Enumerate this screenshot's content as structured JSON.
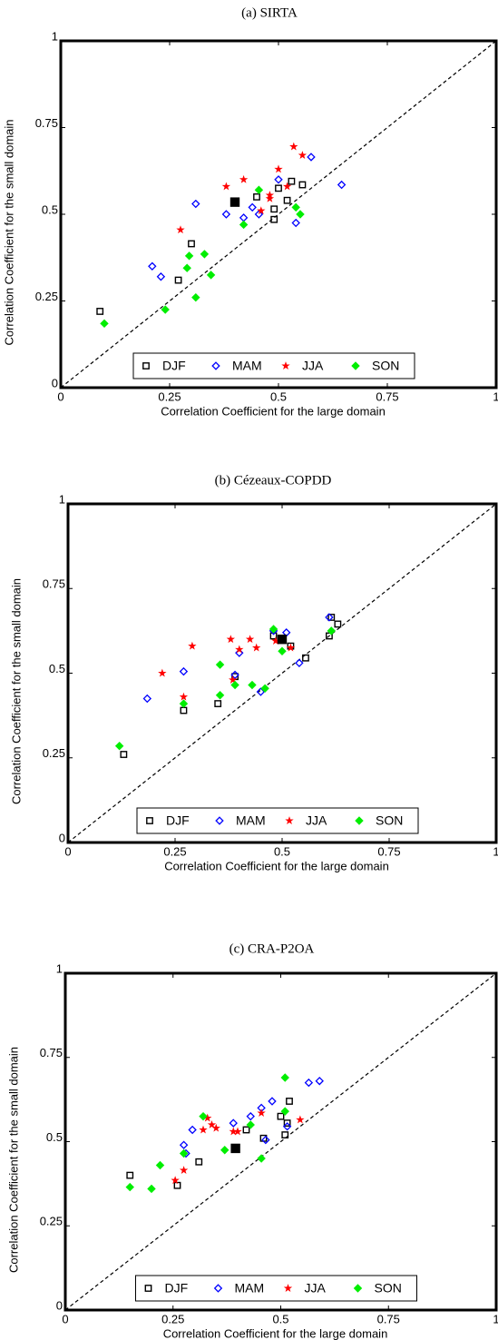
{
  "chart_data": [
    {
      "type": "scatter",
      "title": "(a) SIRTA",
      "xlabel": "Correlation Coefficient for the large domain",
      "ylabel": "Correlation Coefficient for the small domain",
      "xlim": [
        0,
        1
      ],
      "ylim": [
        0,
        1
      ],
      "xticks": [
        0,
        0.25,
        0.5,
        0.75,
        1
      ],
      "yticks": [
        0,
        0.25,
        0.5,
        0.75,
        1
      ],
      "legend": "lower center",
      "series": [
        {
          "name": "DJF",
          "color": "#000000",
          "marker": "square",
          "x": [
            0.09,
            0.27,
            0.3,
            0.45,
            0.49,
            0.49,
            0.5,
            0.52,
            0.53,
            0.555
          ],
          "y": [
            0.22,
            0.31,
            0.415,
            0.55,
            0.485,
            0.515,
            0.575,
            0.54,
            0.595,
            0.585
          ]
        },
        {
          "name": "MAM",
          "color": "#0000ff",
          "marker": "diamond",
          "x": [
            0.21,
            0.23,
            0.31,
            0.38,
            0.42,
            0.44,
            0.455,
            0.5,
            0.54,
            0.575,
            0.645
          ],
          "y": [
            0.35,
            0.32,
            0.53,
            0.5,
            0.49,
            0.52,
            0.5,
            0.6,
            0.475,
            0.665,
            0.585
          ]
        },
        {
          "name": "JJA",
          "color": "#ff0000",
          "marker": "star",
          "x": [
            0.275,
            0.38,
            0.42,
            0.46,
            0.48,
            0.48,
            0.5,
            0.52,
            0.535,
            0.555
          ],
          "y": [
            0.455,
            0.58,
            0.6,
            0.51,
            0.555,
            0.545,
            0.63,
            0.58,
            0.695,
            0.67
          ]
        },
        {
          "name": "SON",
          "color": "#00ee00",
          "marker": "diamond",
          "x": [
            0.1,
            0.24,
            0.29,
            0.295,
            0.31,
            0.33,
            0.345,
            0.42,
            0.455,
            0.54,
            0.55
          ],
          "y": [
            0.185,
            0.225,
            0.345,
            0.38,
            0.26,
            0.385,
            0.325,
            0.47,
            0.57,
            0.52,
            0.5
          ]
        },
        {
          "color": "#000000",
          "marker": "filled-square",
          "x": [
            0.4
          ],
          "y": [
            0.535
          ]
        }
      ]
    },
    {
      "type": "scatter",
      "title": "(b) Cézeaux-COPDD",
      "xlabel": "Correlation Coefficient for the large domain",
      "ylabel": "Correlation Coefficient for the small domain",
      "xlim": [
        0,
        1
      ],
      "ylim": [
        0,
        1
      ],
      "xticks": [
        0,
        0.25,
        0.5,
        0.75,
        1
      ],
      "yticks": [
        0,
        0.25,
        0.5,
        0.75,
        1
      ],
      "legend": "lower center",
      "series": [
        {
          "name": "DJF",
          "color": "#000000",
          "marker": "square",
          "x": [
            0.13,
            0.27,
            0.35,
            0.39,
            0.48,
            0.52,
            0.555,
            0.61,
            0.63,
            0.615
          ],
          "y": [
            0.26,
            0.39,
            0.41,
            0.49,
            0.61,
            0.58,
            0.545,
            0.61,
            0.645,
            0.665
          ]
        },
        {
          "name": "MAM",
          "color": "#0000ff",
          "marker": "diamond",
          "x": [
            0.185,
            0.27,
            0.39,
            0.4,
            0.45,
            0.48,
            0.51,
            0.54,
            0.61
          ],
          "y": [
            0.425,
            0.505,
            0.495,
            0.56,
            0.445,
            0.625,
            0.62,
            0.53,
            0.665
          ]
        },
        {
          "name": "JJA",
          "color": "#ff0000",
          "marker": "star",
          "x": [
            0.22,
            0.27,
            0.29,
            0.38,
            0.385,
            0.4,
            0.425,
            0.44,
            0.485,
            0.52
          ],
          "y": [
            0.5,
            0.43,
            0.58,
            0.6,
            0.48,
            0.57,
            0.6,
            0.575,
            0.595,
            0.575
          ]
        },
        {
          "name": "SON",
          "color": "#00ee00",
          "marker": "diamond",
          "x": [
            0.12,
            0.27,
            0.355,
            0.355,
            0.39,
            0.43,
            0.46,
            0.48,
            0.5,
            0.615
          ],
          "y": [
            0.285,
            0.41,
            0.435,
            0.525,
            0.465,
            0.465,
            0.455,
            0.63,
            0.565,
            0.625
          ]
        },
        {
          "color": "#000000",
          "marker": "filled-square",
          "x": [
            0.5
          ],
          "y": [
            0.6
          ]
        }
      ]
    },
    {
      "type": "scatter",
      "title": "(c) CRA-P2OA",
      "xlabel": "Correlation Coefficient for the large domain",
      "ylabel": "Correlation Coefficient for the small domain",
      "xlim": [
        0,
        1
      ],
      "ylim": [
        0,
        1
      ],
      "xticks": [
        0,
        0.25,
        0.5,
        0.75,
        1
      ],
      "yticks": [
        0,
        0.25,
        0.5,
        0.75,
        1
      ],
      "legend": "lower center",
      "series": [
        {
          "name": "DJF",
          "color": "#000000",
          "marker": "square",
          "x": [
            0.15,
            0.26,
            0.31,
            0.42,
            0.46,
            0.5,
            0.51,
            0.515,
            0.52
          ],
          "y": [
            0.4,
            0.37,
            0.44,
            0.535,
            0.51,
            0.575,
            0.52,
            0.555,
            0.62
          ]
        },
        {
          "name": "MAM",
          "color": "#0000ff",
          "marker": "diamond",
          "x": [
            0.275,
            0.28,
            0.295,
            0.39,
            0.43,
            0.455,
            0.465,
            0.48,
            0.515,
            0.565,
            0.59
          ],
          "y": [
            0.49,
            0.465,
            0.535,
            0.555,
            0.575,
            0.6,
            0.505,
            0.62,
            0.545,
            0.675,
            0.68
          ]
        },
        {
          "name": "JJA",
          "color": "#ff0000",
          "marker": "star",
          "x": [
            0.255,
            0.275,
            0.32,
            0.33,
            0.34,
            0.35,
            0.39,
            0.4,
            0.455,
            0.545
          ],
          "y": [
            0.385,
            0.415,
            0.535,
            0.57,
            0.55,
            0.54,
            0.53,
            0.53,
            0.585,
            0.565
          ]
        },
        {
          "name": "SON",
          "color": "#00ee00",
          "marker": "diamond",
          "x": [
            0.15,
            0.2,
            0.22,
            0.275,
            0.32,
            0.37,
            0.43,
            0.455,
            0.51,
            0.51
          ],
          "y": [
            0.365,
            0.36,
            0.43,
            0.465,
            0.575,
            0.475,
            0.55,
            0.45,
            0.69,
            0.59
          ]
        },
        {
          "color": "#000000",
          "marker": "filled-square",
          "x": [
            0.395
          ],
          "y": [
            0.48
          ]
        }
      ]
    }
  ]
}
